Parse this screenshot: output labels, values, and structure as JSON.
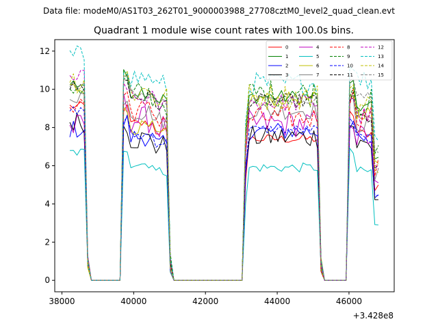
{
  "figure": {
    "suptitle": "Data file: modeM0/AS1T03_262T01_9000003988_27708cztM0_level2_quad_clean.evt",
    "title": "Quadrant 1 module wise count rates with 100.0s bins."
  },
  "chart_data": {
    "type": "line",
    "title": "Quadrant 1 module wise count rates with 100.0s bins.",
    "xlabel": "",
    "ylabel": "",
    "x_offset_label": "+3.428e8",
    "xlim": [
      37800,
      47260
    ],
    "ylim": [
      -0.6,
      12.6
    ],
    "xticks": [
      38000,
      40000,
      42000,
      44000,
      46000
    ],
    "yticks": [
      0,
      2,
      4,
      6,
      8,
      10,
      12
    ],
    "legend_position": "top-right",
    "segments": [
      [
        38220,
        38620
      ],
      [
        39640,
        40920
      ],
      [
        43080,
        45120
      ],
      [
        46000,
        46820
      ]
    ],
    "series": [
      {
        "name": "0",
        "color": "#ff0000",
        "dash": "solid",
        "level": [
          9.1,
          8.2,
          7.4,
          7.7
        ]
      },
      {
        "name": "1",
        "color": "#008000",
        "dash": "solid",
        "level": [
          10.3,
          9.9,
          9.6,
          9.1
        ]
      },
      {
        "name": "2",
        "color": "#0000ff",
        "dash": "solid",
        "level": [
          7.9,
          7.5,
          7.8,
          7.3
        ]
      },
      {
        "name": "3",
        "color": "#000000",
        "dash": "solid",
        "level": [
          8.3,
          7.4,
          7.5,
          7.1
        ]
      },
      {
        "name": "4",
        "color": "#bf00bf",
        "dash": "solid",
        "level": [
          8.0,
          8.4,
          8.2,
          7.5
        ]
      },
      {
        "name": "5",
        "color": "#00bfbf",
        "dash": "solid",
        "level": [
          6.7,
          6.1,
          5.9,
          5.7
        ]
      },
      {
        "name": "6",
        "color": "#bfbf00",
        "dash": "solid",
        "level": [
          10.1,
          8.0,
          9.5,
          8.8
        ]
      },
      {
        "name": "7",
        "color": "#808080",
        "dash": "solid",
        "level": [
          9.7,
          8.8,
          8.9,
          8.2
        ]
      },
      {
        "name": "8",
        "color": "#ff0000",
        "dash": "dashed",
        "level": [
          9.3,
          8.9,
          8.5,
          8.6
        ]
      },
      {
        "name": "9",
        "color": "#008000",
        "dash": "dashed",
        "level": [
          10.2,
          9.7,
          9.8,
          9.3
        ]
      },
      {
        "name": "10",
        "color": "#0000ff",
        "dash": "dashed",
        "level": [
          8.9,
          7.6,
          7.9,
          7.4
        ]
      },
      {
        "name": "11",
        "color": "#000000",
        "dash": "dashed",
        "level": [
          10.1,
          9.6,
          9.4,
          8.5
        ]
      },
      {
        "name": "12",
        "color": "#bf00bf",
        "dash": "dashed",
        "level": [
          10.6,
          9.5,
          9.3,
          8.6
        ]
      },
      {
        "name": "13",
        "color": "#00bfbf",
        "dash": "dashed",
        "level": [
          11.7,
          10.6,
          10.3,
          10.5
        ]
      },
      {
        "name": "14",
        "color": "#bfbf00",
        "dash": "dashed",
        "level": [
          10.5,
          9.9,
          9.6,
          9.1
        ]
      },
      {
        "name": "15",
        "color": "#808080",
        "dash": "dashed",
        "level": [
          10.2,
          9.8,
          9.5,
          9.6
        ]
      }
    ]
  }
}
